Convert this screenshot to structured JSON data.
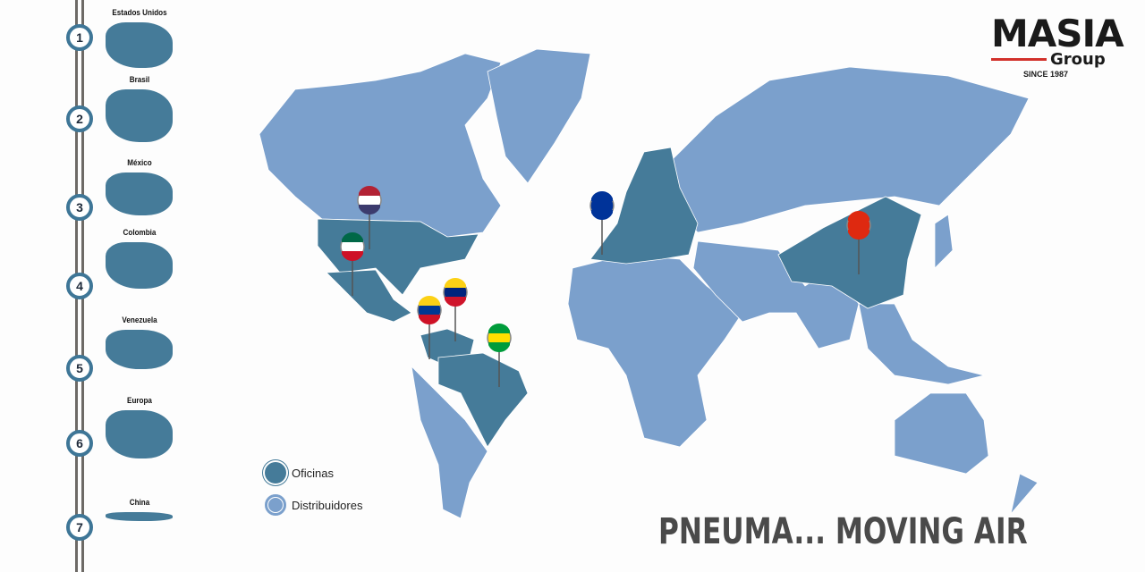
{
  "colors": {
    "office": "#457b99",
    "distributor": "#7ba0cc",
    "rail": "#6d6a66",
    "logo_accent": "#d2312b"
  },
  "sidebar": {
    "items": [
      {
        "number": "1",
        "label": "Estados Unidos"
      },
      {
        "number": "2",
        "label": "Brasil"
      },
      {
        "number": "3",
        "label": "México"
      },
      {
        "number": "4",
        "label": "Colombia"
      },
      {
        "number": "5",
        "label": "Venezuela"
      },
      {
        "number": "6",
        "label": "Europa"
      },
      {
        "number": "7",
        "label": "China"
      }
    ]
  },
  "logo": {
    "name": "MASIA",
    "group": "Group",
    "since": "SINCE 1987"
  },
  "legend": {
    "offices": "Oficinas",
    "distributors": "Distribuidores"
  },
  "pins": [
    "United States flag",
    "Mexico flag",
    "Colombia flag",
    "Venezuela flag",
    "Brazil flag",
    "European Union flag",
    "China flag"
  ],
  "tagline": "PNEUMA... MOVING AIR"
}
